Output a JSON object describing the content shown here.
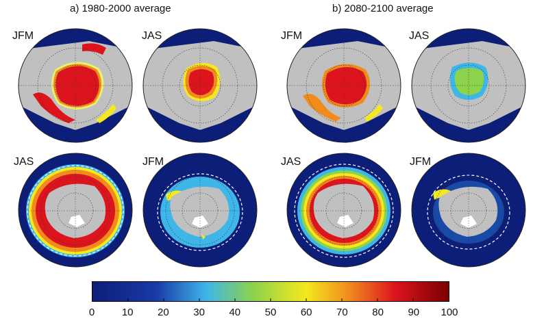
{
  "titles": {
    "left": "a) 1980-2000 average",
    "right": "b) 2080-2100 average"
  },
  "maps": [
    {
      "id": "a-arctic-jfm",
      "label": "JFM",
      "hemisphere": "north",
      "period": "1980-2000",
      "season": "JFM"
    },
    {
      "id": "a-arctic-jas",
      "label": "JAS",
      "hemisphere": "north",
      "period": "1980-2000",
      "season": "JAS"
    },
    {
      "id": "b-arctic-jfm",
      "label": "JFM",
      "hemisphere": "north",
      "period": "2080-2100",
      "season": "JFM"
    },
    {
      "id": "b-arctic-jas",
      "label": "JAS",
      "hemisphere": "north",
      "period": "2080-2100",
      "season": "JAS"
    },
    {
      "id": "a-antarctic-jas",
      "label": "JAS",
      "hemisphere": "south",
      "period": "1980-2000",
      "season": "JAS"
    },
    {
      "id": "a-antarctic-jfm",
      "label": "JFM",
      "hemisphere": "south",
      "period": "1980-2000",
      "season": "JFM"
    },
    {
      "id": "b-antarctic-jas",
      "label": "JAS",
      "hemisphere": "south",
      "period": "2080-2100",
      "season": "JAS"
    },
    {
      "id": "b-antarctic-jfm",
      "label": "JFM",
      "hemisphere": "south",
      "period": "2080-2100",
      "season": "JFM"
    }
  ],
  "colorbar": {
    "min": 0,
    "max": 100,
    "tick_labels": [
      "0",
      "10",
      "20",
      "30",
      "40",
      "50",
      "60",
      "70",
      "80",
      "90",
      "100"
    ],
    "colors": {
      "ocean": "#0c1e78",
      "land": "#c0c0c0",
      "low": "#0d2a8c",
      "cyan": "#3fb6e8",
      "green": "#8cd24c",
      "yellow": "#f5e81e",
      "orange": "#f08c1e",
      "red": "#dc141e",
      "dark_red": "#7a0000"
    }
  }
}
